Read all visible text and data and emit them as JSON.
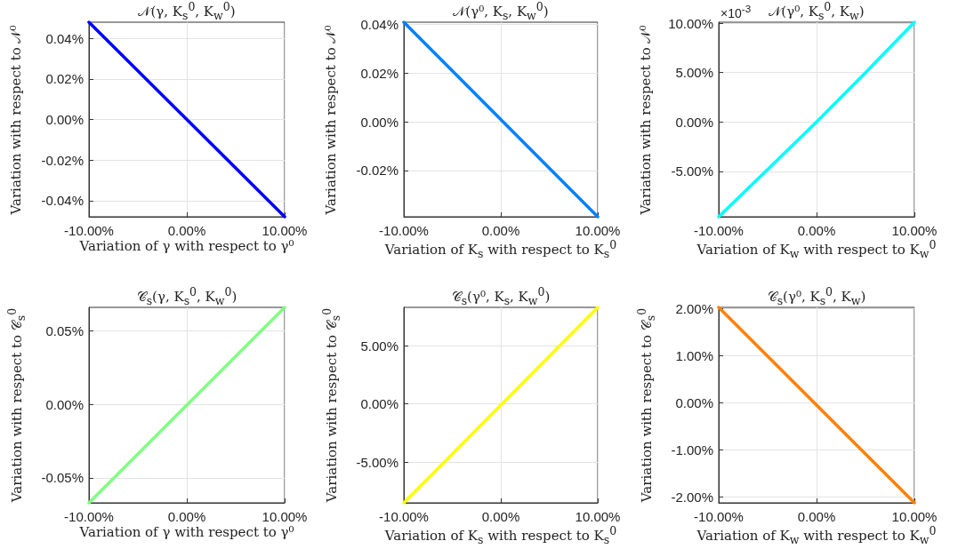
{
  "chart_data": [
    {
      "type": "line",
      "title": "𝒩(γ, K$_{s}$$^{0}$, K$_{w}$$^{0}$)",
      "xlabel": "Variation of γ with respect to γ⁰",
      "ylabel": "Variation with respect to 𝒩⁰",
      "x": [
        -10,
        10
      ],
      "series": [
        {
          "color": "#0000ff",
          "values": [
            0.048,
            -0.048
          ]
        }
      ],
      "xlim": [
        -10,
        10
      ],
      "xticks": [
        {
          "value": -10,
          "label": "-10.00%"
        },
        {
          "value": 0,
          "label": "0.00%"
        },
        {
          "value": 10,
          "label": "10.00%"
        }
      ],
      "ylim": [
        -0.048,
        0.048
      ],
      "yticks": [
        {
          "value": -0.04,
          "label": "-0.04%"
        },
        {
          "value": -0.02,
          "label": "-0.02%"
        },
        {
          "value": 0,
          "label": "0.00%"
        },
        {
          "value": 0.02,
          "label": "0.02%"
        },
        {
          "value": 0.04,
          "label": "0.04%"
        }
      ],
      "grid": true
    },
    {
      "type": "line",
      "title": "𝒩(γ⁰, K$_{s}$, K$_{w}$$^{0}$)",
      "xlabel": "Variation of K$_{s}$ with respect to K$_{s}$$^{0}$",
      "ylabel": "Variation with respect to 𝒩⁰",
      "x": [
        -10,
        10
      ],
      "series": [
        {
          "color": "#0080ff",
          "values": [
            0.041,
            -0.039
          ]
        }
      ],
      "xlim": [
        -10,
        10
      ],
      "xticks": [
        {
          "value": -10,
          "label": "-10.00%"
        },
        {
          "value": 0,
          "label": "0.00%"
        },
        {
          "value": 10,
          "label": "10.00%"
        }
      ],
      "ylim": [
        -0.039,
        0.041
      ],
      "yticks": [
        {
          "value": -0.02,
          "label": "-0.02%"
        },
        {
          "value": 0,
          "label": "0.00%"
        },
        {
          "value": 0.02,
          "label": "0.02%"
        },
        {
          "value": 0.04,
          "label": "0.04%"
        }
      ],
      "grid": true
    },
    {
      "type": "line",
      "title": "𝒩(γ⁰, K$_{s}$$^{0}$, K$_{w}$)",
      "xlabel": "Variation of K$_{w}$ with respect to K$_{w}$$^{0}$",
      "ylabel": "Variation with respect to 𝒩⁰",
      "annotations": [
        "×10$^{-3}$"
      ],
      "x": [
        -10,
        -5,
        0,
        5,
        10
      ],
      "series": [
        {
          "color": "#00ffff",
          "values": [
            -9.6,
            -4.8,
            0,
            5.0,
            10.1
          ]
        }
      ],
      "xlim": [
        -10,
        10
      ],
      "xticks": [
        {
          "value": -10,
          "label": "-10.00%"
        },
        {
          "value": 0,
          "label": "0.00%"
        },
        {
          "value": 10,
          "label": "10.00%"
        }
      ],
      "ylim": [
        -9.6,
        10.1
      ],
      "yticks": [
        {
          "value": -5,
          "label": "-5.00%"
        },
        {
          "value": 0,
          "label": "0.00%"
        },
        {
          "value": 5,
          "label": "5.00%"
        },
        {
          "value": 10,
          "label": "10.00%"
        }
      ],
      "grid": true
    },
    {
      "type": "line",
      "title": "𝒞$_{s}$(γ, K$_{s}$$^{0}$, K$_{w}$$^{0}$)",
      "xlabel": "Variation of γ with respect to γ⁰",
      "ylabel": "Variation with respect to 𝒞$_{s}$$^{0}$",
      "x": [
        -10,
        10
      ],
      "series": [
        {
          "color": "#80ff80",
          "values": [
            -0.067,
            0.066
          ]
        }
      ],
      "xlim": [
        -10,
        10
      ],
      "xticks": [
        {
          "value": -10,
          "label": "-10.00%"
        },
        {
          "value": 0,
          "label": "0.00%"
        },
        {
          "value": 10,
          "label": "10.00%"
        }
      ],
      "ylim": [
        -0.067,
        0.066
      ],
      "yticks": [
        {
          "value": -0.05,
          "label": "-0.05%"
        },
        {
          "value": 0,
          "label": "0.00%"
        },
        {
          "value": 0.05,
          "label": "0.05%"
        }
      ],
      "grid": true
    },
    {
      "type": "line",
      "title": "𝒞$_{s}$(γ⁰, K$_{s}$, K$_{w}$$^{0}$)",
      "xlabel": "Variation of K$_{s}$ with respect to K$_{s}$$^{0}$",
      "ylabel": "Variation with respect to 𝒞$_{s}$$^{0}$",
      "x": [
        -10,
        10
      ],
      "series": [
        {
          "color": "#ffff00",
          "values": [
            -8.5,
            8.3
          ]
        }
      ],
      "xlim": [
        -10,
        10
      ],
      "xticks": [
        {
          "value": -10,
          "label": "-10.00%"
        },
        {
          "value": 0,
          "label": "0.00%"
        },
        {
          "value": 10,
          "label": "10.00%"
        }
      ],
      "ylim": [
        -8.5,
        8.3
      ],
      "yticks": [
        {
          "value": -5,
          "label": "-5.00%"
        },
        {
          "value": 0,
          "label": "0.00%"
        },
        {
          "value": 5,
          "label": "5.00%"
        }
      ],
      "grid": true
    },
    {
      "type": "line",
      "title": "𝒞$_{s}$(γ⁰, K$_{s}$$^{0}$, K$_{w}$)",
      "xlabel": "Variation of K$_{w}$ with respect to K$_{w}$$^{0}$",
      "ylabel": "Variation with respect to 𝒞$_{s}$$^{0}$",
      "x": [
        -10,
        10
      ],
      "series": [
        {
          "color": "#ff8000",
          "values": [
            2.02,
            -2.12
          ]
        }
      ],
      "xlim": [
        -10,
        10
      ],
      "xticks": [
        {
          "value": -10,
          "label": "-10.00%"
        },
        {
          "value": 0,
          "label": "0.00%"
        },
        {
          "value": 10,
          "label": "10.00%"
        }
      ],
      "ylim": [
        -2.12,
        2.02
      ],
      "yticks": [
        {
          "value": -2,
          "label": "-2.00%"
        },
        {
          "value": -1,
          "label": "-1.00%"
        },
        {
          "value": 0,
          "label": "0.00%"
        },
        {
          "value": 1,
          "label": "1.00%"
        },
        {
          "value": 2,
          "label": "2.00%"
        }
      ],
      "grid": true
    }
  ]
}
